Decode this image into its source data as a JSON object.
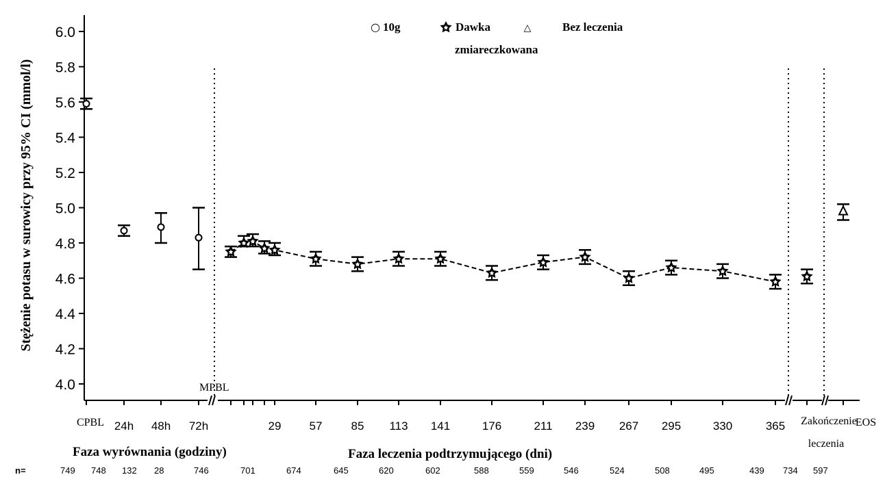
{
  "chart_data": {
    "type": "scatter",
    "ylabel": "Stężenie potasu w surowicy przy 95% CI (mmol/l)",
    "ylim": [
      3.9,
      6.1
    ],
    "yticks": [
      "4.0",
      "4.2",
      "4.4",
      "4.6",
      "4.8",
      "5.0",
      "5.2",
      "5.4",
      "5.6",
      "5.8",
      "6.0"
    ],
    "legend": [
      {
        "symbol": "○",
        "label": "10g",
        "marker": "circle"
      },
      {
        "symbol": "✪",
        "label": "Dawka zmiareczkowana",
        "marker": "star"
      },
      {
        "symbol": "△",
        "label": "Bez leczenia",
        "marker": "triangle"
      }
    ],
    "separator_label": "MPBL",
    "phase_labels": {
      "correction": "Faza wyrównania (godziny)",
      "maintenance": "Faza leczenia podtrzymującego (dni)"
    },
    "n_label": "n=",
    "x_ticks": [
      "CPBL",
      "24h",
      "48h",
      "72h",
      "29",
      "57",
      "85",
      "113",
      "141",
      "176",
      "211",
      "239",
      "267",
      "295",
      "330",
      "365",
      "Zakończenie leczenia",
      "EOS"
    ],
    "n_values": [
      "749",
      "748",
      "132",
      "28",
      "746",
      "701",
      "674",
      "645",
      "620",
      "602",
      "588",
      "559",
      "546",
      "524",
      "508",
      "495",
      "439",
      "734",
      "597"
    ],
    "series": [
      {
        "name": "10g",
        "marker": "circle",
        "points": [
          {
            "x": "CPBL",
            "y": 5.59,
            "lo": 5.56,
            "hi": 5.62
          },
          {
            "x": "24h",
            "y": 4.87,
            "lo": 4.84,
            "hi": 4.9
          },
          {
            "x": "48h",
            "y": 4.89,
            "lo": 4.8,
            "hi": 4.97
          },
          {
            "x": "72h",
            "y": 4.83,
            "lo": 4.65,
            "hi": 5.0
          }
        ]
      },
      {
        "name": "Dawka zmiareczkowana",
        "marker": "star",
        "points": [
          {
            "x": "8",
            "y": 4.75,
            "lo": 4.72,
            "hi": 4.78
          },
          {
            "x": "15",
            "y": 4.8,
            "lo": 4.78,
            "hi": 4.84
          },
          {
            "x": "22",
            "y": 4.81,
            "lo": 4.78,
            "hi": 4.85
          },
          {
            "x": "25",
            "y": 4.77,
            "lo": 4.74,
            "hi": 4.81
          },
          {
            "x": "29",
            "y": 4.76,
            "lo": 4.73,
            "hi": 4.8
          },
          {
            "x": "57",
            "y": 4.71,
            "lo": 4.67,
            "hi": 4.75
          },
          {
            "x": "85",
            "y": 4.68,
            "lo": 4.64,
            "hi": 4.72
          },
          {
            "x": "113",
            "y": 4.71,
            "lo": 4.67,
            "hi": 4.75
          },
          {
            "x": "141",
            "y": 4.71,
            "lo": 4.67,
            "hi": 4.75
          },
          {
            "x": "176",
            "y": 4.63,
            "lo": 4.59,
            "hi": 4.67
          },
          {
            "x": "211",
            "y": 4.69,
            "lo": 4.65,
            "hi": 4.73
          },
          {
            "x": "239",
            "y": 4.72,
            "lo": 4.68,
            "hi": 4.76
          },
          {
            "x": "267",
            "y": 4.6,
            "lo": 4.56,
            "hi": 4.64
          },
          {
            "x": "295",
            "y": 4.66,
            "lo": 4.62,
            "hi": 4.7
          },
          {
            "x": "330",
            "y": 4.64,
            "lo": 4.6,
            "hi": 4.68
          },
          {
            "x": "365",
            "y": 4.58,
            "lo": 4.54,
            "hi": 4.62
          },
          {
            "x": "Zakończenie leczenia",
            "y": 4.61,
            "lo": 4.57,
            "hi": 4.65
          }
        ]
      },
      {
        "name": "Bez leczenia",
        "marker": "triangle",
        "points": [
          {
            "x": "EOS",
            "y": 4.98,
            "lo": 4.93,
            "hi": 5.02
          }
        ]
      }
    ]
  }
}
